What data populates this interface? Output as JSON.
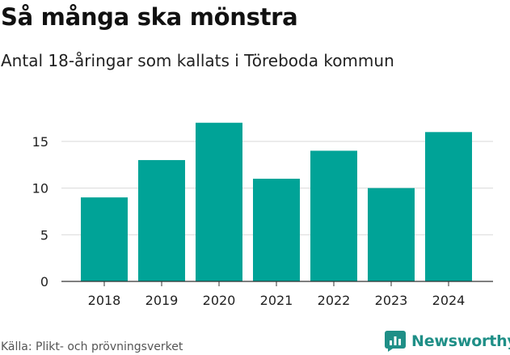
{
  "header": {
    "title": "Så många ska mönstra",
    "subtitle": "Antal 18-åringar som kallats i Töreboda kommun"
  },
  "footer": {
    "source": "Källa: Plikt- och prövningsverket",
    "brand": "Newsworthy"
  },
  "colors": {
    "bar": "#00a397",
    "grid": "#d9d9d9",
    "axis": "#333333",
    "brand": "#1f8f87"
  },
  "chart_data": {
    "type": "bar",
    "title": "Så många ska mönstra",
    "subtitle": "Antal 18-åringar som kallats i Töreboda kommun",
    "xlabel": "",
    "ylabel": "",
    "categories": [
      "2018",
      "2019",
      "2020",
      "2021",
      "2022",
      "2023",
      "2024"
    ],
    "values": [
      9,
      13,
      17,
      11,
      14,
      10,
      16
    ],
    "ylim": [
      0,
      17.5
    ],
    "yticks": [
      0,
      5,
      10,
      15
    ],
    "grid": true,
    "legend": "none"
  }
}
